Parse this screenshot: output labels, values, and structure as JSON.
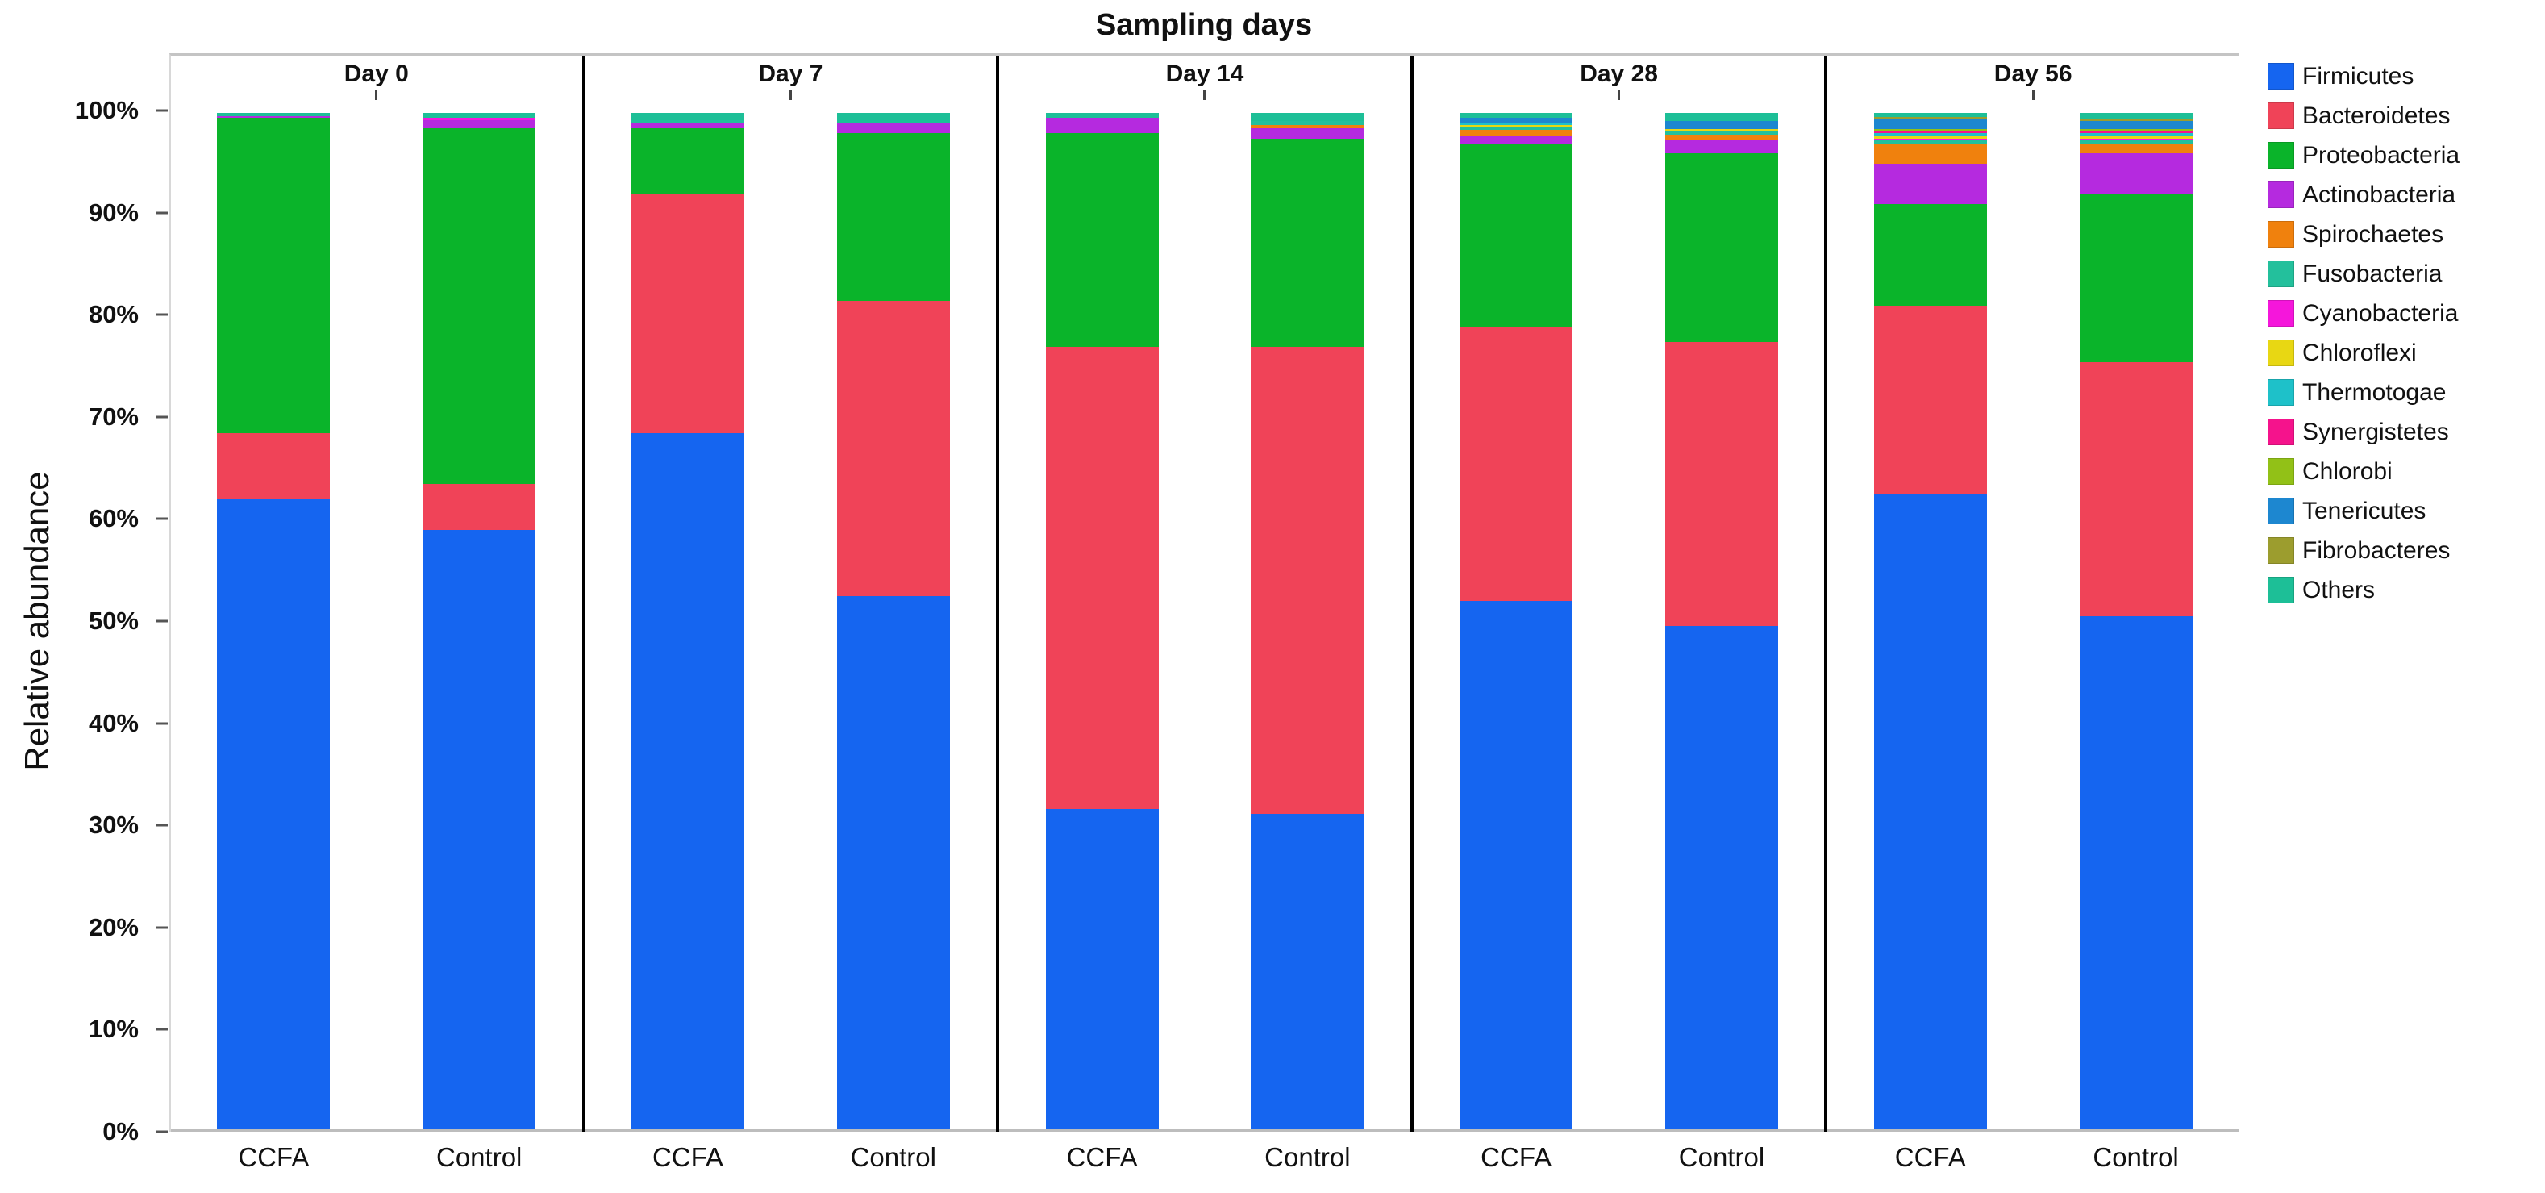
{
  "title": "Sampling days",
  "y_axis": {
    "label": "Relative abundance",
    "ticks": [
      "100%",
      "90%",
      "80%",
      "70%",
      "60%",
      "50%",
      "40%",
      "30%",
      "20%",
      "10%",
      "0%"
    ]
  },
  "chart_data": {
    "type": "bar",
    "stacked": true,
    "percent_scale": true,
    "title": "Sampling days",
    "xlabel": "",
    "ylabel": "Relative abundance",
    "ylim": [
      0,
      100
    ],
    "grid": false,
    "legend_position": "right",
    "groups": [
      "Day 0",
      "Day 7",
      "Day 14",
      "Day 28",
      "Day 56"
    ],
    "bar_labels": [
      "CCFA",
      "Control"
    ],
    "bar_order_note": "values arrays are ordered Day0-CCFA, Day0-Control, Day7-CCFA, Day7-Control, Day14-CCFA, Day14-Control, Day28-CCFA, Day28-Control, Day56-CCFA, Day56-Control",
    "series": [
      {
        "name": "Firmicutes",
        "color": "#1565F0",
        "values": [
          62.0,
          59.0,
          68.5,
          52.5,
          31.5,
          31.0,
          52.0,
          49.5,
          62.5,
          50.5
        ]
      },
      {
        "name": "Bacteroidetes",
        "color": "#F04358",
        "values": [
          6.5,
          4.5,
          23.5,
          29.0,
          45.5,
          46.0,
          27.0,
          28.0,
          18.5,
          25.0
        ]
      },
      {
        "name": "Proteobacteria",
        "color": "#0AB42A",
        "values": [
          31.0,
          35.0,
          6.5,
          16.5,
          21.0,
          20.5,
          18.0,
          18.5,
          10.0,
          16.5
        ]
      },
      {
        "name": "Actinobacteria",
        "color": "#B52ADF",
        "values": [
          0.2,
          0.8,
          0.5,
          1.0,
          1.5,
          1.0,
          0.8,
          1.3,
          4.0,
          4.0
        ]
      },
      {
        "name": "Spirochaetes",
        "color": "#F0810D",
        "values": [
          0,
          0,
          0,
          0,
          0,
          0.3,
          0.5,
          0.6,
          2.0,
          1.0
        ]
      },
      {
        "name": "Fusobacteria",
        "color": "#23C09C",
        "values": [
          0,
          0,
          0.3,
          0,
          0,
          0.4,
          0.3,
          0.3,
          0.3,
          0.3
        ]
      },
      {
        "name": "Cyanobacteria",
        "color": "#F516DB",
        "values": [
          0,
          0.2,
          0,
          0,
          0,
          0,
          0,
          0,
          0.2,
          0.2
        ]
      },
      {
        "name": "Chloroflexi",
        "color": "#E8D713",
        "values": [
          0,
          0,
          0,
          0,
          0,
          0,
          0.2,
          0.2,
          0.3,
          0.3
        ]
      },
      {
        "name": "Thermotogae",
        "color": "#1EC1C9",
        "values": [
          0,
          0,
          0,
          0,
          0,
          0,
          0.2,
          0,
          0.2,
          0.2
        ]
      },
      {
        "name": "Synergistetes",
        "color": "#F5138C",
        "values": [
          0,
          0,
          0,
          0,
          0,
          0,
          0,
          0,
          0.2,
          0.2
        ]
      },
      {
        "name": "Chlorobi",
        "color": "#92C117",
        "values": [
          0,
          0,
          0,
          0,
          0,
          0,
          0,
          0,
          0.2,
          0.2
        ]
      },
      {
        "name": "Tenericutes",
        "color": "#1D87D0",
        "values": [
          0,
          0,
          0,
          0,
          0,
          0,
          0.5,
          0.8,
          1.0,
          0.8
        ]
      },
      {
        "name": "Fibrobacteres",
        "color": "#9C9D2E",
        "values": [
          0,
          0,
          0,
          0,
          0,
          0,
          0,
          0,
          0.2,
          0.2
        ]
      },
      {
        "name": "Others",
        "color": "#1DBF97",
        "values": [
          0.3,
          0.5,
          0.7,
          1.0,
          0.5,
          0.8,
          0.5,
          0.8,
          0.4,
          0.6
        ]
      }
    ]
  },
  "legend": {
    "items": [
      "Firmicutes",
      "Bacteroidetes",
      "Proteobacteria",
      "Actinobacteria",
      "Spirochaetes",
      "Fusobacteria",
      "Cyanobacteria",
      "Chloroflexi",
      "Thermotogae",
      "Synergistetes",
      "Chlorobi",
      "Tenericutes",
      "Fibrobacteres",
      "Others"
    ]
  }
}
